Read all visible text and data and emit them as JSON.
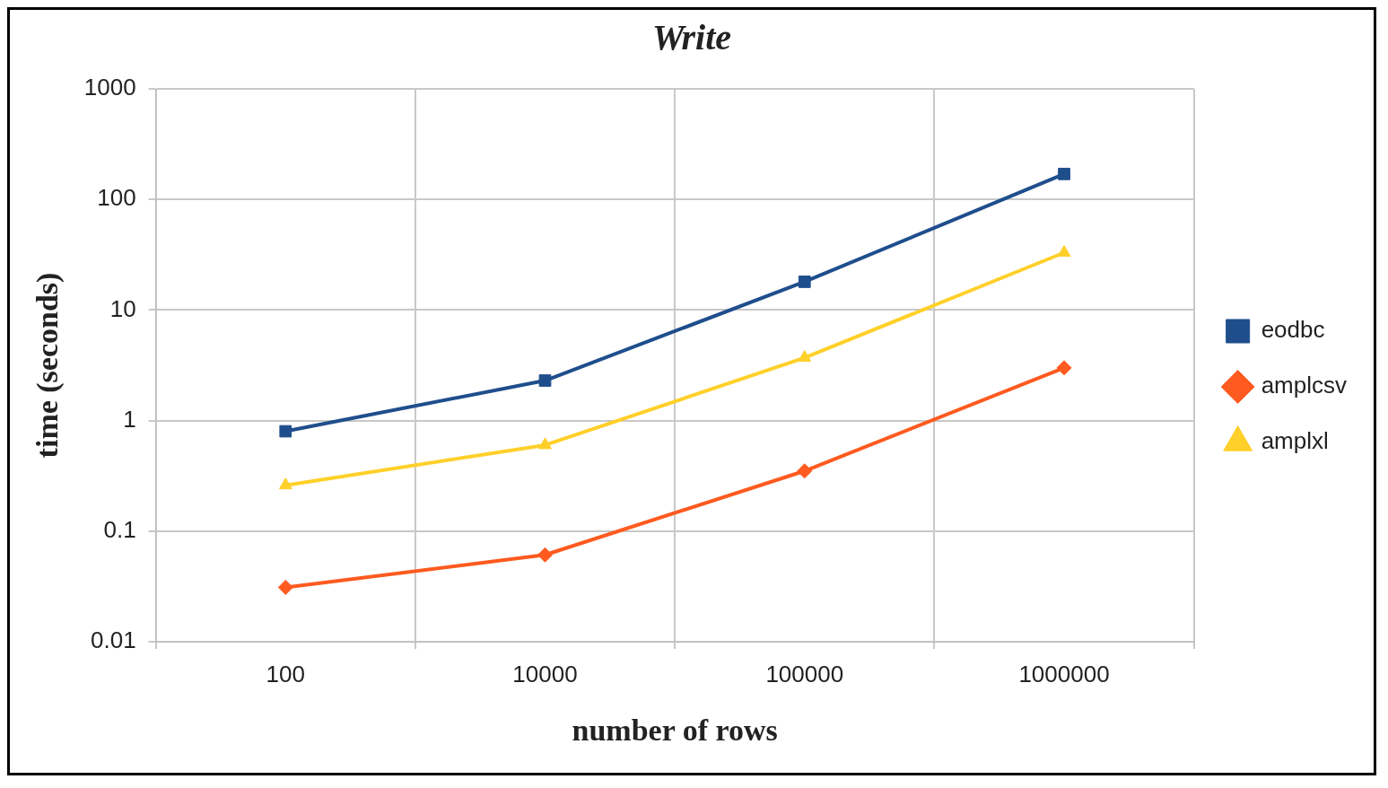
{
  "chart_data": {
    "type": "line",
    "title": "Write",
    "xlabel": "number of rows",
    "ylabel": "time (seconds)",
    "categories": [
      "100",
      "10000",
      "100000",
      "1000000"
    ],
    "series": [
      {
        "name": "eodbc",
        "color": "#1f4e8c",
        "values": [
          0.8,
          2.3,
          18,
          170
        ],
        "marker": "square"
      },
      {
        "name": "amplcsv",
        "color": "#ff5a1f",
        "values": [
          0.031,
          0.061,
          0.35,
          3
        ],
        "marker": "diamond"
      },
      {
        "name": "amplxl",
        "color": "#ffd02a",
        "values": [
          0.26,
          0.6,
          3.7,
          33
        ],
        "marker": "triangle"
      }
    ],
    "log": "y",
    "ylim": [
      0.01,
      1000
    ],
    "yticks": [
      0.01,
      0.1,
      1,
      10,
      100,
      1000
    ],
    "grid": true,
    "legend": "right",
    "line_style": "solid"
  }
}
